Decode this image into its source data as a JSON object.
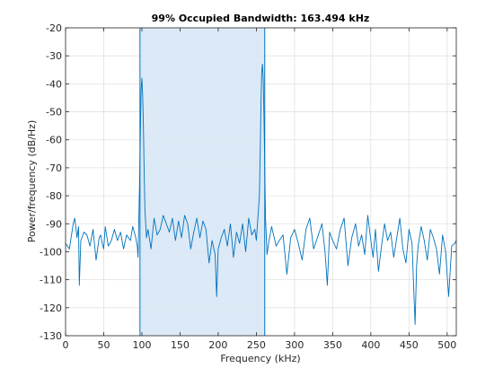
{
  "chart_data": {
    "type": "line",
    "title": "99% Occupied Bandwidth: 163.494 kHz",
    "xlabel": "Frequency (kHz)",
    "ylabel": "Power/frequency (dB/Hz)",
    "xlim": [
      0,
      512
    ],
    "ylim": [
      -130,
      -20
    ],
    "xticks": [
      0,
      50,
      100,
      150,
      200,
      250,
      300,
      350,
      400,
      450,
      500
    ],
    "yticks": [
      -130,
      -120,
      -110,
      -100,
      -90,
      -80,
      -70,
      -60,
      -50,
      -40,
      -30,
      -20
    ],
    "grid": true,
    "occupied_band_khz": [
      97.5,
      261.0
    ],
    "colors": {
      "line": "#0072BD",
      "band_fill": "#d8e7f5",
      "band_edge": "#0072BD",
      "grid": "#e1e1e1",
      "axis": "#262626"
    },
    "series": [
      {
        "x": [
          0,
          5,
          10,
          12,
          15,
          17,
          18,
          20,
          24,
          28,
          32,
          36,
          40,
          44,
          46,
          48,
          50,
          52,
          56,
          60,
          64,
          68,
          72,
          76,
          80,
          85,
          88,
          92,
          94,
          95,
          96,
          97,
          98,
          99,
          100,
          101,
          102,
          103,
          104,
          105,
          106,
          108,
          112,
          116,
          120,
          124,
          128,
          132,
          136,
          140,
          144,
          148,
          152,
          156,
          160,
          164,
          168,
          172,
          176,
          180,
          184,
          188,
          192,
          196,
          198,
          200,
          204,
          208,
          212,
          216,
          220,
          224,
          228,
          232,
          236,
          240,
          244,
          248,
          250,
          252,
          254,
          255,
          256,
          257,
          258,
          259,
          260,
          261,
          262,
          263,
          264,
          266,
          270,
          276,
          280,
          285,
          290,
          295,
          300,
          305,
          310,
          315,
          320,
          325,
          330,
          336,
          340,
          343,
          346,
          350,
          355,
          360,
          365,
          370,
          375,
          380,
          384,
          388,
          392,
          396,
          400,
          403,
          406,
          410,
          414,
          418,
          422,
          426,
          430,
          434,
          438,
          442,
          446,
          450,
          454,
          458,
          460,
          462,
          466,
          470,
          474,
          478,
          482,
          486,
          490,
          494,
          498,
          502,
          506,
          510,
          512
        ],
        "values": [
          -97,
          -99,
          -90,
          -88,
          -95,
          -91,
          -112,
          -96,
          -93,
          -94,
          -98,
          -92,
          -103,
          -95,
          -94,
          -97,
          -99,
          -91,
          -98,
          -96,
          -92,
          -96,
          -93,
          -99,
          -94,
          -96,
          -91,
          -95,
          -98,
          -102,
          -88,
          -75,
          -58,
          -42,
          -38,
          -44,
          -55,
          -72,
          -85,
          -90,
          -95,
          -92,
          -99,
          -88,
          -94,
          -92,
          -87,
          -90,
          -93,
          -88,
          -96,
          -89,
          -95,
          -87,
          -90,
          -99,
          -93,
          -88,
          -95,
          -89,
          -92,
          -104,
          -96,
          -101,
          -116,
          -99,
          -95,
          -92,
          -98,
          -90,
          -102,
          -93,
          -97,
          -90,
          -100,
          -88,
          -94,
          -92,
          -96,
          -88,
          -80,
          -65,
          -48,
          -36,
          -33,
          -38,
          -52,
          -70,
          -88,
          -94,
          -101,
          -97,
          -91,
          -98,
          -96,
          -94,
          -108,
          -95,
          -92,
          -97,
          -103,
          -92,
          -88,
          -99,
          -95,
          -90,
          -100,
          -112,
          -93,
          -96,
          -99,
          -92,
          -88,
          -105,
          -95,
          -90,
          -98,
          -94,
          -101,
          -87,
          -96,
          -102,
          -92,
          -107,
          -98,
          -90,
          -96,
          -93,
          -102,
          -95,
          -88,
          -99,
          -104,
          -92,
          -97,
          -126,
          -105,
          -98,
          -91,
          -96,
          -103,
          -92,
          -95,
          -99,
          -108,
          -94,
          -100,
          -116,
          -98,
          -97,
          -96
        ]
      }
    ]
  }
}
